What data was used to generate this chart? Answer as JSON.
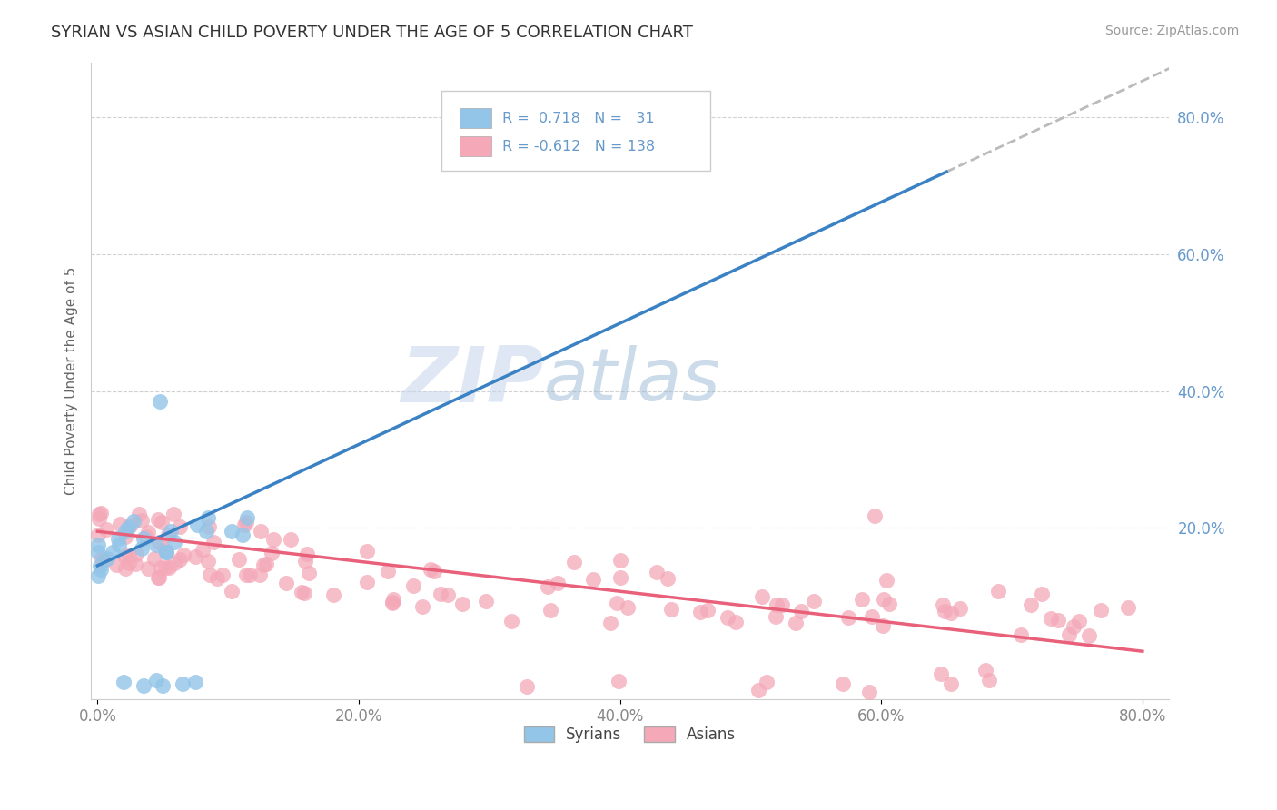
{
  "title": "SYRIAN VS ASIAN CHILD POVERTY UNDER THE AGE OF 5 CORRELATION CHART",
  "source": "Source: ZipAtlas.com",
  "ylabel": "Child Poverty Under the Age of 5",
  "xlim": [
    -0.005,
    0.82
  ],
  "ylim": [
    -0.05,
    0.88
  ],
  "xtick_vals": [
    0.0,
    0.2,
    0.4,
    0.6,
    0.8
  ],
  "ytick_vals": [
    0.2,
    0.4,
    0.6,
    0.8
  ],
  "syrian_color": "#92C5E8",
  "asian_color": "#F4A8B8",
  "syrian_line_color": "#3B82C4",
  "asian_line_color": "#E8607A",
  "trendline_ext_color": "#BBBBBB",
  "background_color": "#FFFFFF",
  "grid_color": "#CCCCCC",
  "watermark_zip": "ZIP",
  "watermark_atlas": "atlas",
  "tick_label_color": "#6699CC",
  "syrian_r": 0.718,
  "asian_r": -0.612,
  "syrian_n": 31,
  "asian_n": 138,
  "syr_line_x0": 0.0,
  "syr_line_y0": 0.145,
  "syr_line_x1": 0.65,
  "syr_line_y1": 0.72,
  "asian_line_x0": 0.0,
  "asian_line_y0": 0.195,
  "asian_line_x1": 0.8,
  "asian_line_y1": 0.02
}
